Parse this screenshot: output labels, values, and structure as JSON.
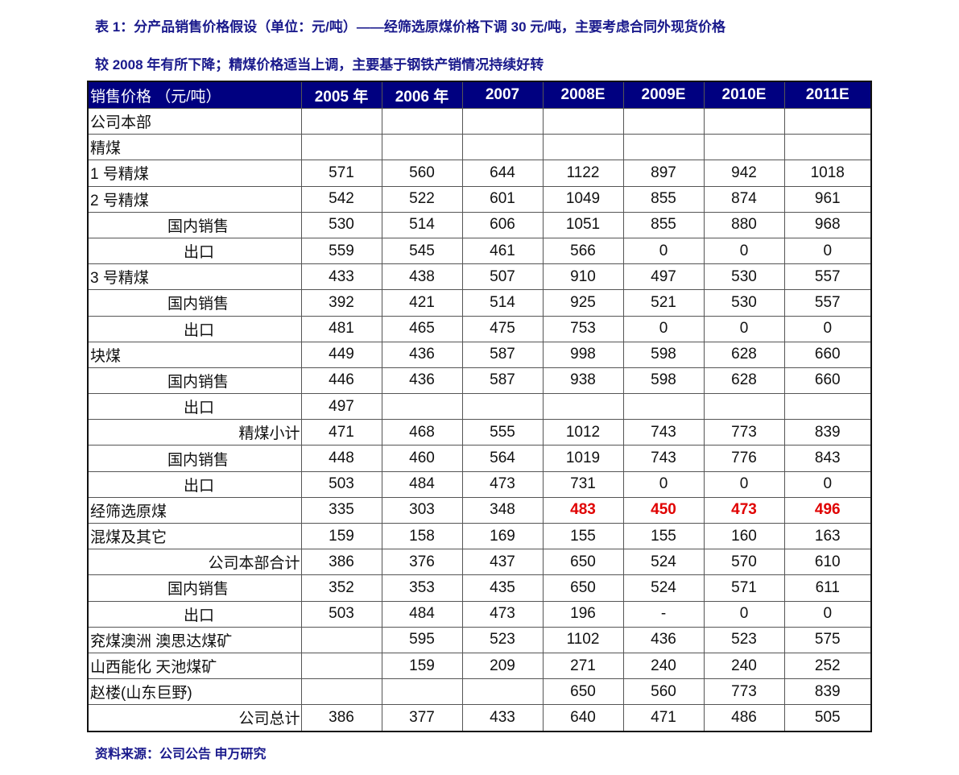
{
  "title_line1": "表 1：分产品销售价格假设（单位：元/吨）——经筛选原煤价格下调 30 元/吨，主要考虑合同外现货价格",
  "title_line2": "较 2008 年有所下降；精煤价格适当上调，主要基于钢铁产销情况持续好转",
  "table": {
    "headers": [
      "销售价格  （元/吨）",
      "2005 年",
      "2006 年",
      "2007",
      "2008E",
      "2009E",
      "2010E",
      "2011E"
    ],
    "rows": [
      {
        "label": "公司本部",
        "style": "left",
        "values": [
          "",
          "",
          "",
          "",
          "",
          "",
          ""
        ]
      },
      {
        "label": "精煤",
        "style": "left",
        "values": [
          "",
          "",
          "",
          "",
          "",
          "",
          ""
        ]
      },
      {
        "label": "1 号精煤",
        "style": "left",
        "values": [
          "571",
          "560",
          "644",
          "1122",
          "897",
          "942",
          "1018"
        ]
      },
      {
        "label": "2 号精煤",
        "style": "left",
        "values": [
          "542",
          "522",
          "601",
          "1049",
          "855",
          "874",
          "961"
        ]
      },
      {
        "label": "国内销售",
        "style": "in1",
        "values": [
          "530",
          "514",
          "606",
          "1051",
          "855",
          "880",
          "968"
        ]
      },
      {
        "label": "出口",
        "style": "in2",
        "values": [
          "559",
          "545",
          "461",
          "566",
          "0",
          "0",
          "0"
        ]
      },
      {
        "label": "3 号精煤",
        "style": "left",
        "values": [
          "433",
          "438",
          "507",
          "910",
          "497",
          "530",
          "557"
        ]
      },
      {
        "label": "国内销售",
        "style": "in1",
        "values": [
          "392",
          "421",
          "514",
          "925",
          "521",
          "530",
          "557"
        ]
      },
      {
        "label": "出口",
        "style": "in2",
        "values": [
          "481",
          "465",
          "475",
          "753",
          "0",
          "0",
          "0"
        ]
      },
      {
        "label": "块煤",
        "style": "left",
        "values": [
          "449",
          "436",
          "587",
          "998",
          "598",
          "628",
          "660"
        ]
      },
      {
        "label": "国内销售",
        "style": "in1",
        "values": [
          "446",
          "436",
          "587",
          "938",
          "598",
          "628",
          "660"
        ]
      },
      {
        "label": "出口",
        "style": "in2",
        "values": [
          "497",
          "",
          "",
          "",
          "",
          "",
          ""
        ]
      },
      {
        "label": "精煤小计",
        "style": "right",
        "values": [
          "471",
          "468",
          "555",
          "1012",
          "743",
          "773",
          "839"
        ]
      },
      {
        "label": "国内销售",
        "style": "in1",
        "values": [
          "448",
          "460",
          "564",
          "1019",
          "743",
          "776",
          "843"
        ]
      },
      {
        "label": "出口",
        "style": "in2",
        "values": [
          "503",
          "484",
          "473",
          "731",
          "0",
          "0",
          "0"
        ]
      },
      {
        "label": "经筛选原煤",
        "style": "left",
        "values": [
          "335",
          "303",
          "348",
          "483",
          "450",
          "473",
          "496"
        ],
        "highlight_from": 3
      },
      {
        "label": "混煤及其它",
        "style": "left",
        "values": [
          "159",
          "158",
          "169",
          "155",
          "155",
          "160",
          "163"
        ]
      },
      {
        "label": "公司本部合计",
        "style": "right",
        "values": [
          "386",
          "376",
          "437",
          "650",
          "524",
          "570",
          "610"
        ]
      },
      {
        "label": "国内销售",
        "style": "in1",
        "values": [
          "352",
          "353",
          "435",
          "650",
          "524",
          "571",
          "611"
        ]
      },
      {
        "label": "出口",
        "style": "in2",
        "values": [
          "503",
          "484",
          "473",
          "196",
          "-",
          "0",
          "0"
        ]
      },
      {
        "label": "兖煤澳洲  澳思达煤矿",
        "style": "left",
        "values": [
          "",
          "595",
          "523",
          "1102",
          "436",
          "523",
          "575"
        ]
      },
      {
        "label": "山西能化  天池煤矿",
        "style": "left",
        "values": [
          "",
          "159",
          "209",
          "271",
          "240",
          "240",
          "252"
        ]
      },
      {
        "label": "赵楼(山东巨野)",
        "style": "left",
        "values": [
          "",
          "",
          "",
          "650",
          "560",
          "773",
          "839"
        ]
      },
      {
        "label": "公司总计",
        "style": "right",
        "values": [
          "386",
          "377",
          "433",
          "640",
          "471",
          "486",
          "505"
        ]
      }
    ]
  },
  "source": "资料来源：公司公告 申万研究",
  "colors": {
    "header_bg": "#000080",
    "title": "#1a1a8c",
    "highlight": "#e00000"
  }
}
